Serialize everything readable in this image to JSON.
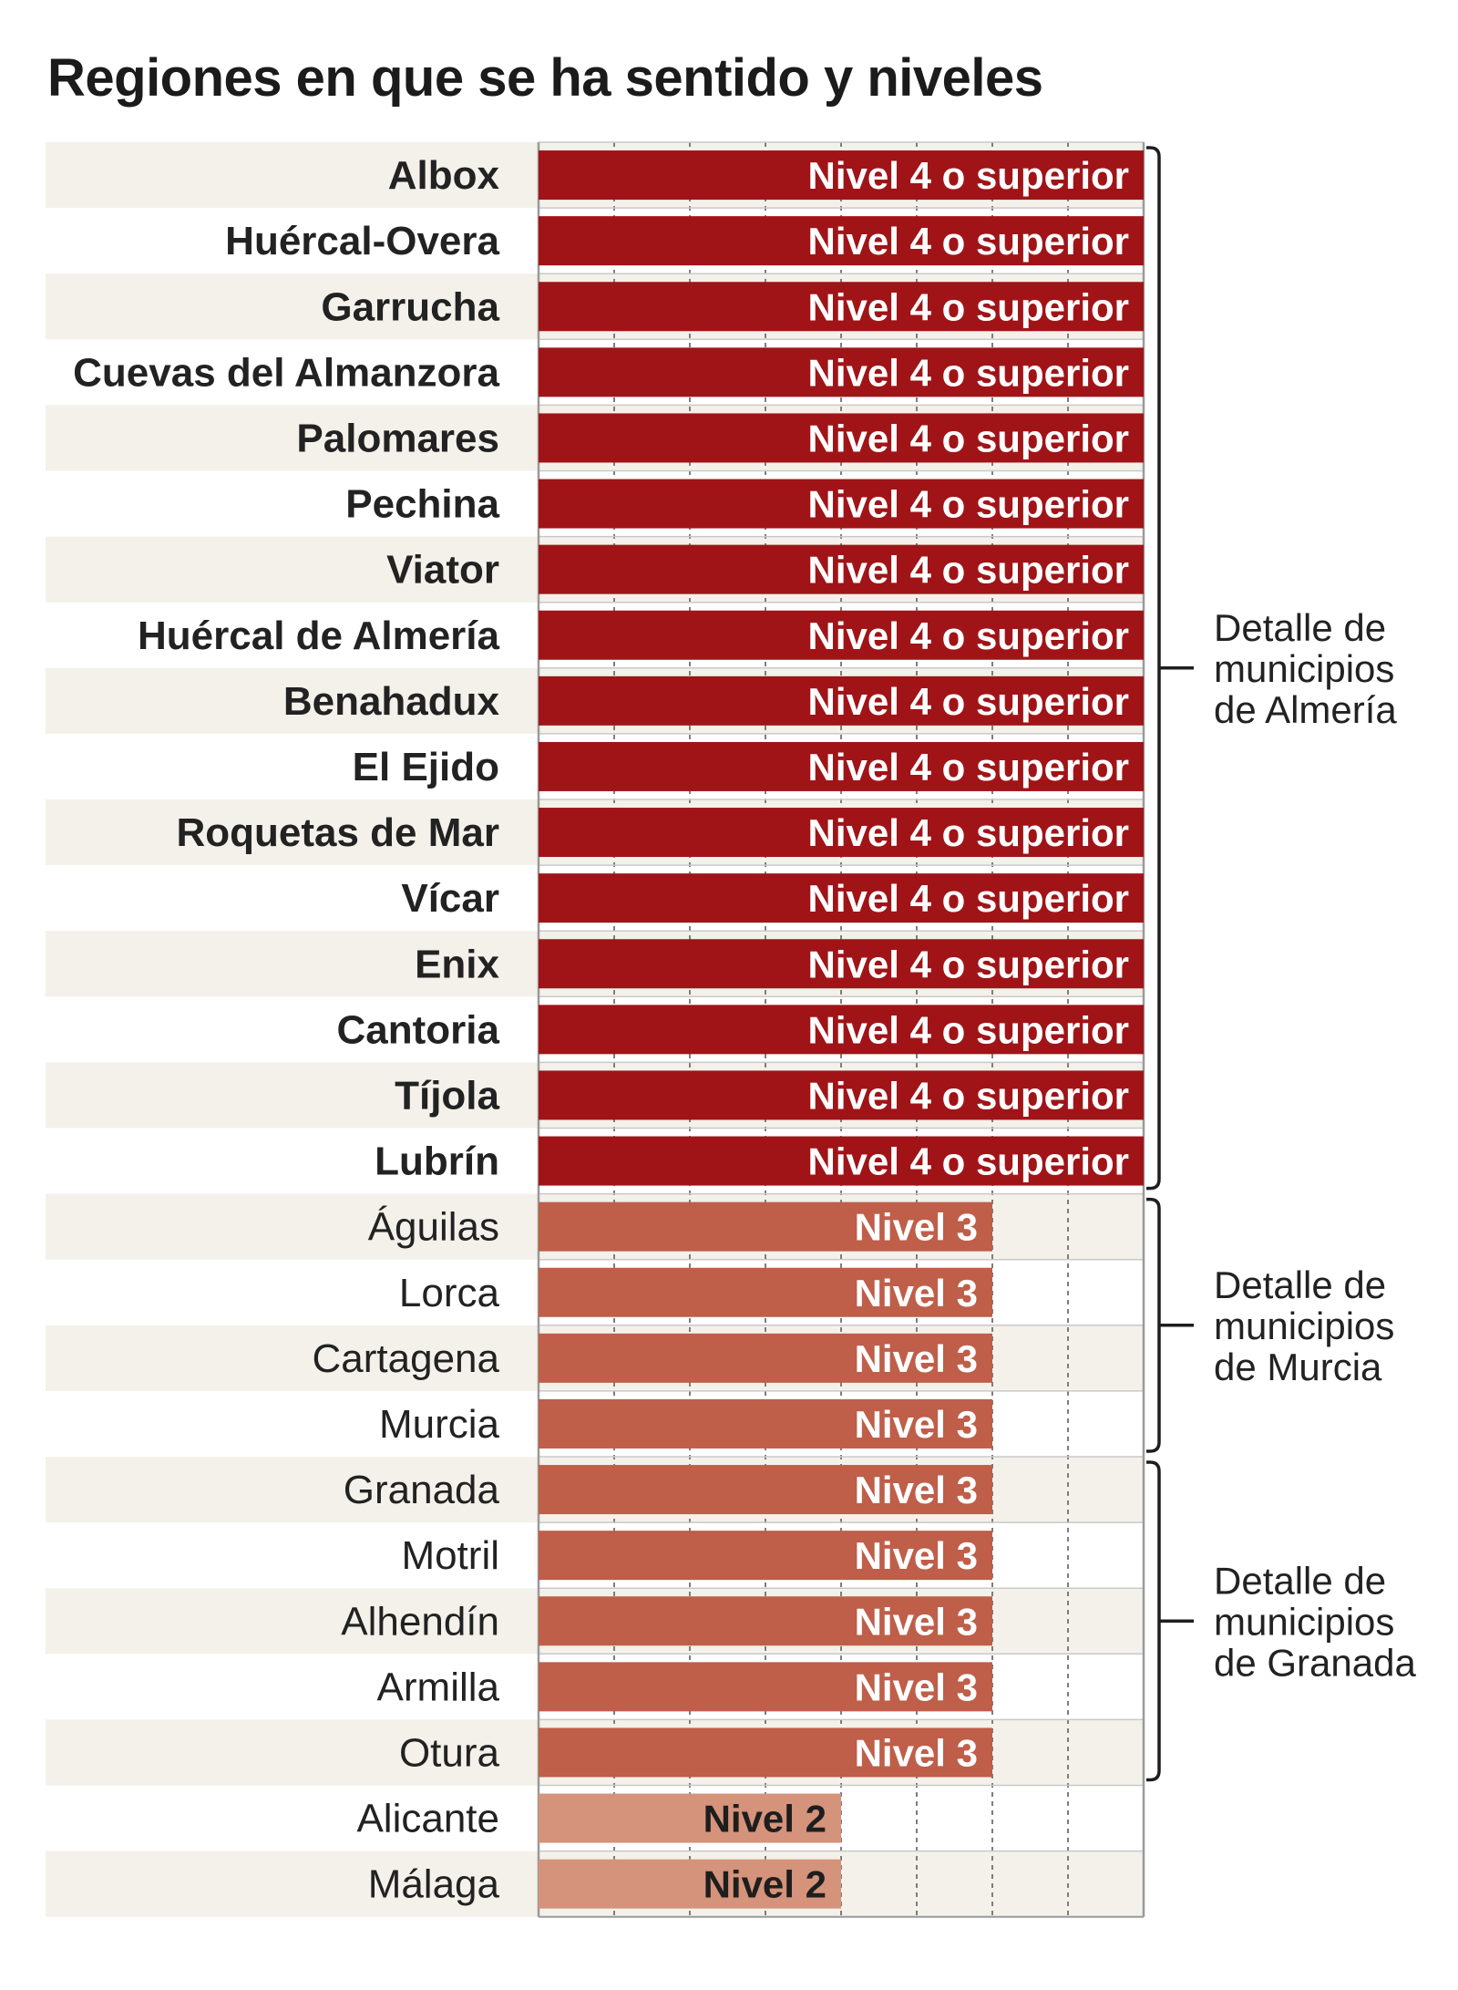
{
  "chart_data": {
    "type": "bar",
    "orientation": "horizontal",
    "title": "Regiones en que se ha sentido y niveles",
    "xlim": [
      0,
      4
    ],
    "grid": true,
    "categories": [
      "Albox",
      "Huércal-Overa",
      "Garrucha",
      "Cuevas del Almanzora",
      "Palomares",
      "Pechina",
      "Viator",
      "Huércal de Almería",
      "Benahadux",
      "El Ejido",
      "Roquetas de Mar",
      "Vícar",
      "Enix",
      "Cantoria",
      "Tíjola",
      "Lubrín",
      "Águilas",
      "Lorca",
      "Cartagena",
      "Murcia",
      "Granada",
      "Motril",
      "Alhendín",
      "Armilla",
      "Otura",
      "Alicante",
      "Málaga"
    ],
    "values": [
      4,
      4,
      4,
      4,
      4,
      4,
      4,
      4,
      4,
      4,
      4,
      4,
      4,
      4,
      4,
      4,
      3,
      3,
      3,
      3,
      3,
      3,
      3,
      3,
      3,
      2,
      2
    ],
    "bar_labels": [
      "Nivel 4 o superior",
      "Nivel 4 o superior",
      "Nivel 4 o superior",
      "Nivel 4 o superior",
      "Nivel 4 o superior",
      "Nivel 4 o superior",
      "Nivel 4 o superior",
      "Nivel 4 o superior",
      "Nivel 4 o superior",
      "Nivel 4 o superior",
      "Nivel 4 o superior",
      "Nivel 4 o superior",
      "Nivel 4 o superior",
      "Nivel 4 o superior",
      "Nivel 4 o superior",
      "Nivel 4 o superior",
      "Nivel 3",
      "Nivel 3",
      "Nivel 3",
      "Nivel 3",
      "Nivel 3",
      "Nivel 3",
      "Nivel 3",
      "Nivel 3",
      "Nivel 3",
      "Nivel 2",
      "Nivel 2"
    ],
    "groups": [
      {
        "label": "Detalle de municipios de Almería",
        "lines": [
          "Detalle de",
          "municipios",
          "de Almería"
        ],
        "start": 0,
        "end": 15
      },
      {
        "label": "Detalle de municipios de Murcia",
        "lines": [
          "Detalle de",
          "municipios",
          "de Murcia"
        ],
        "start": 16,
        "end": 19
      },
      {
        "label": "Detalle de municipios de Granada",
        "lines": [
          "Detalle de",
          "municipios",
          "de Granada"
        ],
        "start": 20,
        "end": 24
      }
    ],
    "colors": {
      "4": "#a01418",
      "3": "#bf5e49",
      "2": "#d5937b",
      "row_band": "#f3f1ea",
      "grid": "#7d7d7d",
      "label_light": "#ffffff",
      "label_dark": "#1e1e1e"
    }
  }
}
